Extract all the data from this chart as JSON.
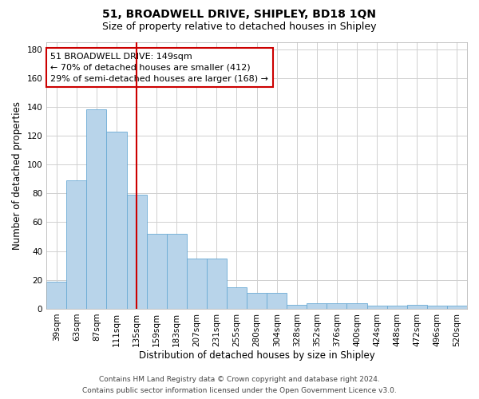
{
  "title": "51, BROADWELL DRIVE, SHIPLEY, BD18 1QN",
  "subtitle": "Size of property relative to detached houses in Shipley",
  "xlabel": "Distribution of detached houses by size in Shipley",
  "ylabel": "Number of detached properties",
  "categories": [
    "39sqm",
    "63sqm",
    "87sqm",
    "111sqm",
    "135sqm",
    "159sqm",
    "183sqm",
    "207sqm",
    "231sqm",
    "255sqm",
    "280sqm",
    "304sqm",
    "328sqm",
    "352sqm",
    "376sqm",
    "400sqm",
    "424sqm",
    "448sqm",
    "472sqm",
    "496sqm",
    "520sqm"
  ],
  "values": [
    19,
    89,
    138,
    123,
    79,
    52,
    52,
    35,
    35,
    15,
    11,
    11,
    3,
    4,
    4,
    4,
    2,
    2,
    3,
    2,
    2
  ],
  "bar_color": "#b8d4ea",
  "bar_edge_color": "#6aaad4",
  "vline_pos": 4.5,
  "vline_color": "#cc0000",
  "annotation_line1": "51 BROADWELL DRIVE: 149sqm",
  "annotation_line2": "← 70% of detached houses are smaller (412)",
  "annotation_line3": "29% of semi-detached houses are larger (168) →",
  "box_edge_color": "#cc0000",
  "ylim": [
    0,
    185
  ],
  "yticks": [
    0,
    20,
    40,
    60,
    80,
    100,
    120,
    140,
    160,
    180
  ],
  "grid_color": "#d0d0d0",
  "background_color": "#ffffff",
  "footer_line1": "Contains HM Land Registry data © Crown copyright and database right 2024.",
  "footer_line2": "Contains public sector information licensed under the Open Government Licence v3.0.",
  "title_fontsize": 10,
  "subtitle_fontsize": 9,
  "xlabel_fontsize": 8.5,
  "ylabel_fontsize": 8.5,
  "tick_fontsize": 7.5,
  "annotation_fontsize": 8,
  "footer_fontsize": 6.5
}
